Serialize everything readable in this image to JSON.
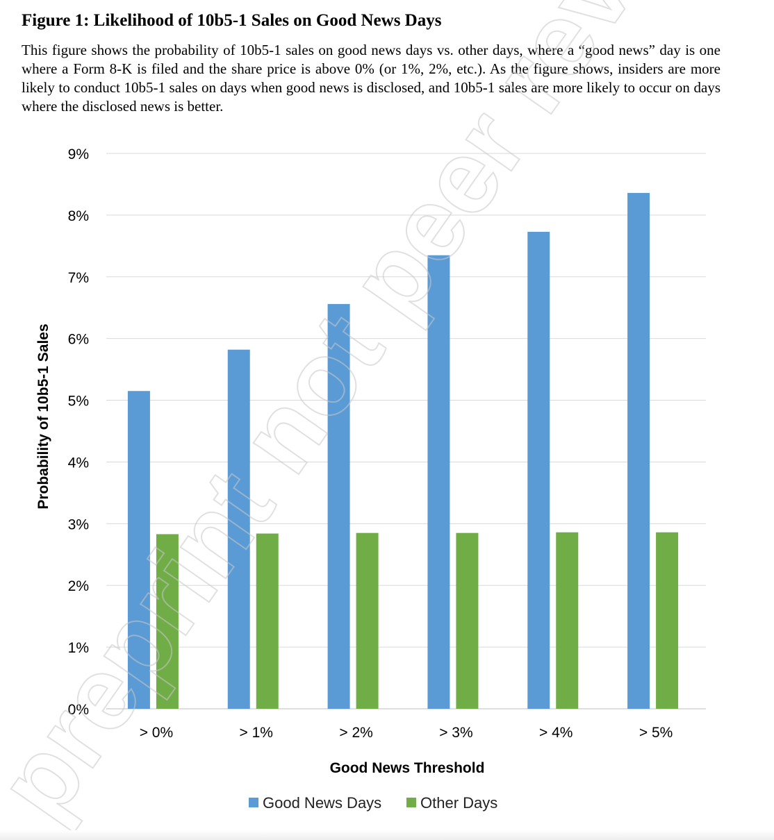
{
  "figure": {
    "title": "Figure 1: Likelihood of 10b5-1 Sales on Good News Days",
    "caption": "This figure shows the probability of 10b5-1 sales on good news days vs. other days, where a “good news” day is one where a Form 8-K is filed and the share price is above 0% (or 1%, 2%, etc.).  As the figure shows, insiders are more likely to conduct 10b5-1 sales on days when good news is disclosed, and 10b5-1 sales are more likely to occur on days where the disclosed news is better."
  },
  "watermark": "preprint not peer reviewed",
  "chart_data": {
    "type": "bar",
    "title": "",
    "xlabel": "Good News Threshold",
    "ylabel": "Probability of 10b5-1 Sales",
    "categories": [
      "> 0%",
      "> 1%",
      "> 2%",
      "> 3%",
      "> 4%",
      "> 5%"
    ],
    "series": [
      {
        "name": "Good News Days",
        "color": "#5b9bd5",
        "values": [
          5.15,
          5.82,
          6.56,
          7.35,
          7.73,
          8.36
        ]
      },
      {
        "name": "Other Days",
        "color": "#70ad47",
        "values": [
          2.83,
          2.84,
          2.85,
          2.85,
          2.86,
          2.86
        ]
      }
    ],
    "ylim": [
      0,
      9
    ],
    "yticks": [
      "0%",
      "1%",
      "2%",
      "3%",
      "4%",
      "5%",
      "6%",
      "7%",
      "8%",
      "9%"
    ],
    "grid": true,
    "legend": "bottom"
  }
}
